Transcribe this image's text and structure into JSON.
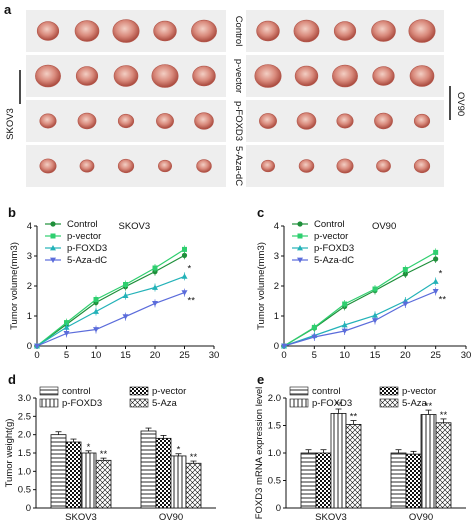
{
  "panel_a": {
    "letter": "a",
    "left_cell_line": "SKOV3",
    "right_cell_line": "OV90",
    "rows": [
      "Control",
      "p-vector",
      "p-FOXD3",
      "5-Aza-dC"
    ]
  },
  "panel_letters": {
    "b": "b",
    "c": "c",
    "d": "d",
    "e": "e"
  },
  "colors": {
    "control": "#1e8f3a",
    "p_vector": "#2fcf6f",
    "p_foxd3": "#23b2b8",
    "aza": "#5b6cdb",
    "tumor_light": "#e8b3a8",
    "tumor_dark": "#b3564a",
    "photo_bg": "#eeeeee"
  },
  "chart_data": [
    {
      "id": "b",
      "type": "line",
      "title": "SKOV3",
      "xlabel": "",
      "ylabel": "Tumor volume(mm3)",
      "xlim": [
        0,
        30
      ],
      "ylim": [
        0,
        4
      ],
      "xticks": [
        "0",
        "5",
        "10",
        "15",
        "20",
        "25",
        "30"
      ],
      "yticks": [
        "0",
        "1",
        "2",
        "3",
        "4"
      ],
      "x": [
        0,
        5,
        10,
        15,
        20,
        25
      ],
      "series": [
        {
          "name": "Control",
          "values": [
            0,
            0.72,
            1.45,
            1.98,
            2.48,
            3.02
          ],
          "marker": "circle"
        },
        {
          "name": "p-vector",
          "values": [
            0,
            0.78,
            1.55,
            2.05,
            2.6,
            3.22
          ],
          "marker": "square"
        },
        {
          "name": "p-FOXD3",
          "values": [
            0,
            0.62,
            1.15,
            1.68,
            1.95,
            2.32
          ],
          "marker": "triangle"
        },
        {
          "name": "5-Aza-dC",
          "values": [
            0,
            0.42,
            0.55,
            0.98,
            1.42,
            1.78
          ],
          "marker": "triangle-down"
        }
      ],
      "annotations": [
        "*",
        "**"
      ],
      "legend": "top-left",
      "grid": false
    },
    {
      "id": "c",
      "type": "line",
      "title": "OV90",
      "xlabel": "",
      "ylabel": "Tumor volume(mm3)",
      "xlim": [
        0,
        30
      ],
      "ylim": [
        0,
        4
      ],
      "xticks": [
        "0",
        "5",
        "10",
        "15",
        "20",
        "25",
        "30"
      ],
      "yticks": [
        "0",
        "1",
        "2",
        "3",
        "4"
      ],
      "x": [
        0,
        5,
        10,
        15,
        20,
        25
      ],
      "series": [
        {
          "name": "Control",
          "values": [
            0,
            0.6,
            1.32,
            1.85,
            2.4,
            2.9
          ],
          "marker": "circle"
        },
        {
          "name": "p-vector",
          "values": [
            0,
            0.62,
            1.4,
            1.9,
            2.55,
            3.12
          ],
          "marker": "square"
        },
        {
          "name": "p-FOXD3",
          "values": [
            0,
            0.35,
            0.7,
            1.02,
            1.5,
            2.15
          ],
          "marker": "triangle"
        },
        {
          "name": "5-Aza-dC",
          "values": [
            0,
            0.3,
            0.5,
            0.85,
            1.4,
            1.82
          ],
          "marker": "triangle-down"
        }
      ],
      "annotations": [
        "*",
        "**"
      ],
      "legend": "top-left",
      "grid": false
    },
    {
      "id": "d",
      "type": "bar",
      "title": "",
      "xlabel": "",
      "ylabel": "Tumor weight(g)",
      "ylim": [
        0,
        3
      ],
      "yticks": [
        "0",
        "0.5",
        "1.0",
        "1.5",
        "2.0",
        "2.5",
        "3.0"
      ],
      "categories": [
        "SKOV3",
        "OV90"
      ],
      "series": [
        {
          "name": "control",
          "values": [
            2.0,
            2.1
          ],
          "errors": [
            0.08,
            0.08
          ],
          "pattern": "hlines",
          "sig": ""
        },
        {
          "name": "p-vector",
          "values": [
            1.8,
            1.9
          ],
          "errors": [
            0.08,
            0.08
          ],
          "pattern": "check",
          "sig": ""
        },
        {
          "name": "p-FOXD3",
          "values": [
            1.5,
            1.42
          ],
          "errors": [
            0.06,
            0.06
          ],
          "pattern": "vlines",
          "sig": "*"
        },
        {
          "name": "5-Aza",
          "values": [
            1.3,
            1.22
          ],
          "errors": [
            0.06,
            0.06
          ],
          "pattern": "cross",
          "sig": "**"
        }
      ],
      "legend": "top"
    },
    {
      "id": "e",
      "type": "bar",
      "title": "",
      "xlabel": "",
      "ylabel": "FOXD3 mRNA expression level",
      "ylim": [
        0,
        2
      ],
      "yticks": [
        "0",
        "0.5",
        "1.0",
        "1.5",
        "2.0"
      ],
      "categories": [
        "SKOV3",
        "OV90"
      ],
      "series": [
        {
          "name": "control",
          "values": [
            1.0,
            1.0
          ],
          "errors": [
            0.06,
            0.06
          ],
          "pattern": "hlines",
          "sig": ""
        },
        {
          "name": "p-vector",
          "values": [
            1.0,
            0.98
          ],
          "errors": [
            0.06,
            0.05
          ],
          "pattern": "check",
          "sig": ""
        },
        {
          "name": "p-FOXD3",
          "values": [
            1.72,
            1.7
          ],
          "errors": [
            0.08,
            0.08
          ],
          "pattern": "vlines",
          "sig": "**"
        },
        {
          "name": "5-Aza",
          "values": [
            1.52,
            1.55
          ],
          "errors": [
            0.07,
            0.07
          ],
          "pattern": "cross",
          "sig": "**"
        }
      ],
      "legend": "top"
    }
  ]
}
